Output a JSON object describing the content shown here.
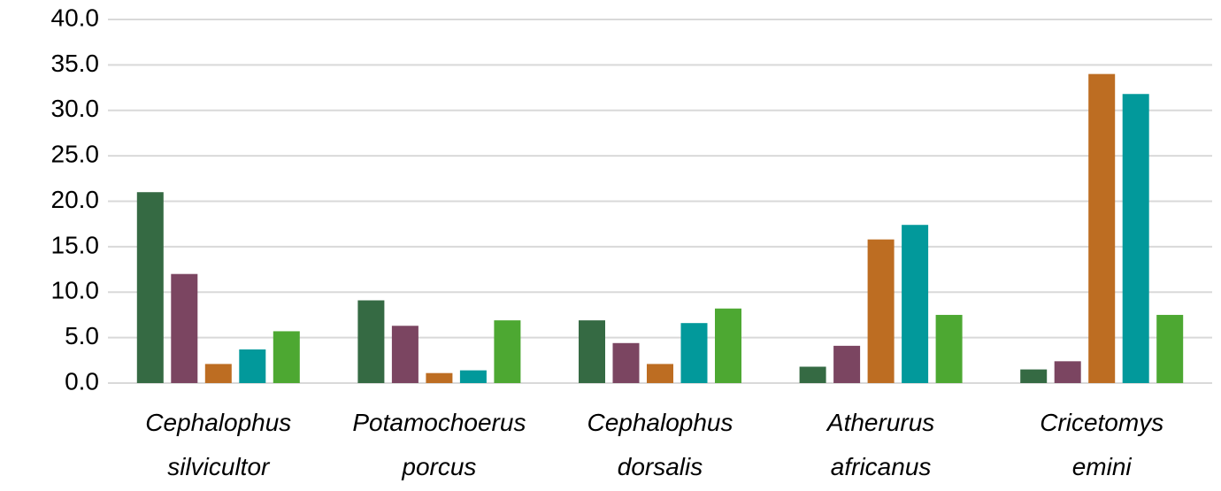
{
  "chart_data": {
    "type": "bar",
    "categories": [
      [
        "Cephalophus",
        "silvicultor"
      ],
      [
        "Potamochoerus",
        "porcus"
      ],
      [
        "Cephalophus",
        "dorsalis"
      ],
      [
        "Atherurus",
        "africanus"
      ],
      [
        "Cricetomys",
        "emini"
      ]
    ],
    "series": [
      {
        "color": "#356a43",
        "values": [
          21.0,
          9.1,
          6.9,
          1.8,
          1.5
        ]
      },
      {
        "color": "#7b4561",
        "values": [
          12.0,
          6.3,
          4.4,
          4.1,
          2.4
        ]
      },
      {
        "color": "#bd6d22",
        "values": [
          2.1,
          1.1,
          2.1,
          15.8,
          34.0
        ]
      },
      {
        "color": "#02999b",
        "values": [
          3.7,
          1.4,
          6.6,
          17.4,
          31.8
        ]
      },
      {
        "color": "#4da832",
        "values": [
          5.7,
          6.9,
          8.2,
          7.5,
          7.5
        ]
      }
    ],
    "ylim": [
      0,
      40
    ],
    "yticks": [
      {
        "value": 0,
        "label": "0.0"
      },
      {
        "value": 5,
        "label": "5.0"
      },
      {
        "value": 10,
        "label": "10.0"
      },
      {
        "value": 15,
        "label": "15.0"
      },
      {
        "value": 20,
        "label": "20.0"
      },
      {
        "value": 25,
        "label": "25.0"
      },
      {
        "value": 30,
        "label": "30.0"
      },
      {
        "value": 35,
        "label": "35.0"
      },
      {
        "value": 40,
        "label": "40.0"
      }
    ],
    "grid": true
  }
}
